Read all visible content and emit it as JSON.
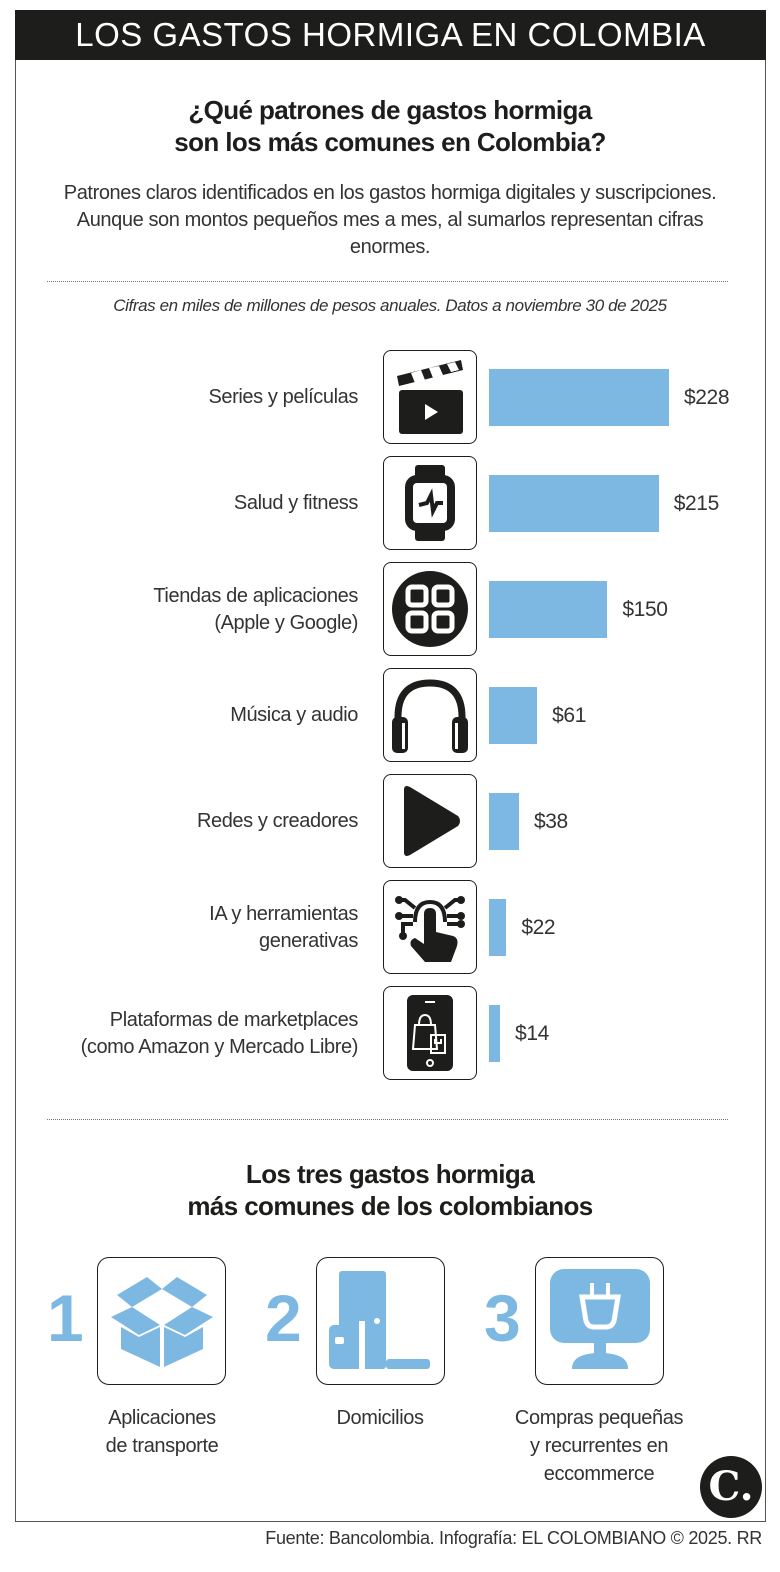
{
  "header": {
    "title": "LOS GASTOS HORMIGA EN COLOMBIA"
  },
  "section1": {
    "title_line1": "¿Qué patrones de gastos hormiga",
    "title_line2": "son los más comunes en Colombia?",
    "intro": "Patrones claros identificados en los gastos hormiga digitales y suscripciones. Aunque son montos pequeños mes a mes, al sumarlos representan cifras enormes.",
    "note": "Cifras en miles de millones de pesos anuales. Datos a noviembre 30 de 2025"
  },
  "chart_data": {
    "type": "bar",
    "orientation": "horizontal",
    "categories": [
      "Series y películas",
      "Salud y fitness",
      "Tiendas de aplicaciones\n(Apple y Google)",
      "Música y audio",
      "Redes y creadores",
      "IA y herramientas\ngenerativas",
      "Plataformas de marketplaces\n(como Amazon y Mercado Libre)"
    ],
    "values": [
      228,
      215,
      150,
      61,
      38,
      22,
      14
    ],
    "value_labels": [
      "$228",
      "$215",
      "$150",
      "$61",
      "$38",
      "$22",
      "$14"
    ],
    "icons": [
      "clapperboard-icon",
      "smartwatch-icon",
      "app-grid-icon",
      "headphones-icon",
      "play-icon",
      "ai-touch-icon",
      "mobile-shopping-icon"
    ],
    "bar_color": "#7db8e3",
    "grid": false
  },
  "section2": {
    "title_line1": "Los tres gastos hormiga",
    "title_line2": "más comunes de los colombianos",
    "items": [
      {
        "rank": "1",
        "label": "Aplicaciones\nde transporte",
        "icon": "open-box-icon"
      },
      {
        "rank": "2",
        "label": "Domicilios",
        "icon": "door-package-icon"
      },
      {
        "rank": "3",
        "label": "Compras pequeñas\ny recurrentes en\neccommerce",
        "icon": "monitor-basket-icon"
      }
    ],
    "accent": "#7db8e3"
  },
  "logo": "C.",
  "footer": "Fuente: Bancolombia. Infografía: EL COLOMBIANO © 2025. RR"
}
